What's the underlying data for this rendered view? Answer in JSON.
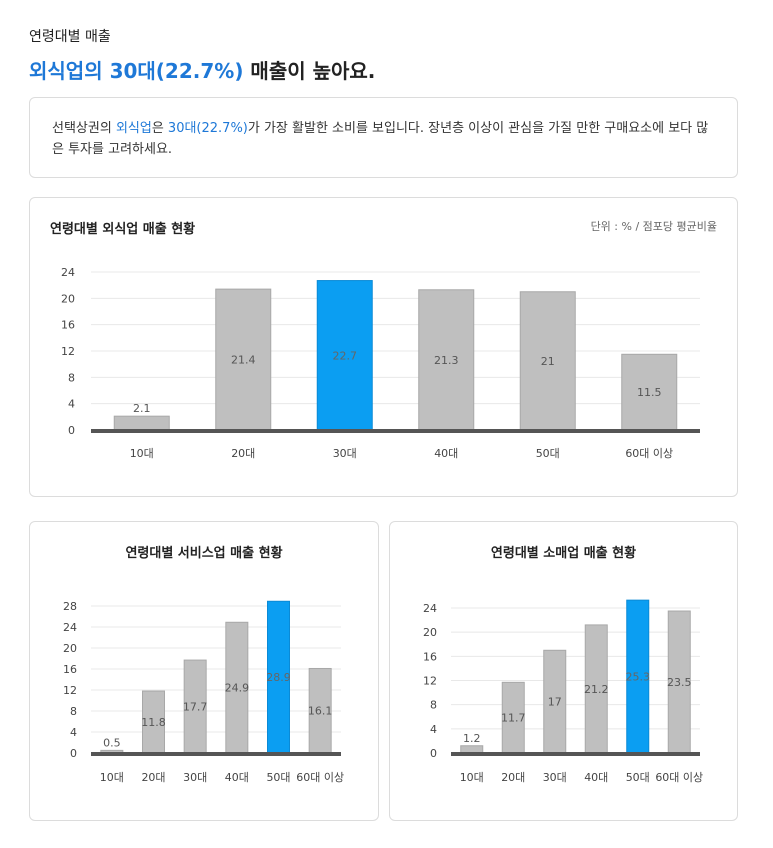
{
  "header": {
    "eyebrow": "연령대별 매출",
    "headline_highlight": "외식업의 30대(22.7%)",
    "headline_rest": " 매출이 높아요."
  },
  "summary": {
    "part1": "선택상권의 ",
    "hl1": "외식업",
    "part2": "은 ",
    "hl2": "30대(22.7%)",
    "part3": "가 가장 활발한 소비를 보입니다. 장년층 이상이 관심을 가질 만한 구매요소에 보다 많은 투자를 고려하세요."
  },
  "colors": {
    "bar": "#bfbfbf",
    "bar_border": "#a8a8a8",
    "highlight": "#0b9ef2",
    "baseline": "#555555",
    "grid": "#e8e8e8"
  },
  "chart_data": [
    {
      "type": "bar",
      "title": "연령대별 외식업 매출 현황",
      "unit": "단위 : % / 점포당 평균비율",
      "categories": [
        "10대",
        "20대",
        "30대",
        "40대",
        "50대",
        "60대 이상"
      ],
      "values": [
        2.1,
        21.4,
        22.7,
        21.3,
        21,
        11.5
      ],
      "highlight_index": 2,
      "yticks": [
        0,
        4,
        8,
        12,
        16,
        20,
        24
      ],
      "ylim": [
        0,
        24
      ],
      "grid": true
    },
    {
      "type": "bar",
      "title": "연령대별 서비스업 매출 현황",
      "categories": [
        "10대",
        "20대",
        "30대",
        "40대",
        "50대",
        "60대 이상"
      ],
      "values": [
        0.5,
        11.8,
        17.7,
        24.9,
        28.9,
        16.1
      ],
      "highlight_index": 4,
      "yticks": [
        0,
        4,
        8,
        12,
        16,
        20,
        24,
        28
      ],
      "ylim": [
        0,
        28
      ],
      "grid": true
    },
    {
      "type": "bar",
      "title": "연령대별 소매업 매출 현황",
      "categories": [
        "10대",
        "20대",
        "30대",
        "40대",
        "50대",
        "60대 이상"
      ],
      "values": [
        1.2,
        11.7,
        17,
        21.2,
        25.3,
        23.5
      ],
      "highlight_index": 4,
      "yticks": [
        0,
        4,
        8,
        12,
        16,
        20,
        24
      ],
      "ylim": [
        0,
        24
      ],
      "grid": true
    }
  ]
}
